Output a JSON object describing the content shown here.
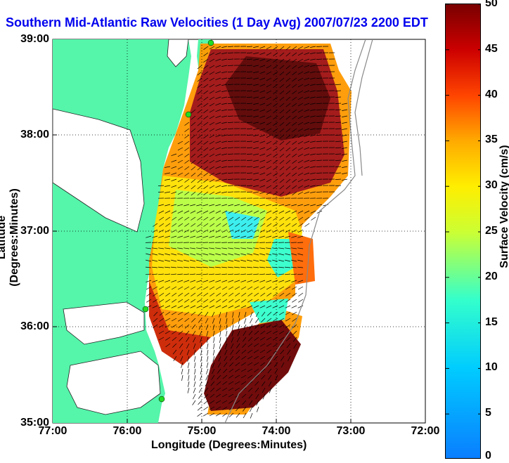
{
  "title": "Southern Mid-Atlantic Raw Velocities (1 Day Avg) 2007/07/23 2200 EDT",
  "x_axis": {
    "label": "Longitude (Degrees:Minutes)",
    "ticks": [
      "77:00",
      "76:00",
      "75:00",
      "74:00",
      "73:00",
      "72:00"
    ]
  },
  "y_axis": {
    "label": "Latitude (Degrees:Minutes)",
    "ticks": [
      "39:00",
      "38:00",
      "37:00",
      "36:00",
      "35:00"
    ]
  },
  "colorbar": {
    "label": "Surface Velocity (cm/s)",
    "ticks": [
      "50",
      "45",
      "40",
      "35",
      "30",
      "25",
      "20",
      "15",
      "10",
      "5",
      "0"
    ],
    "min": 0,
    "max": 50
  },
  "colors": {
    "land": "#55f5aa",
    "water": "#ffffff",
    "title": "#0000ee",
    "site_marker": "#22dd22"
  },
  "grid": true,
  "lon_range": [
    -77,
    -72
  ],
  "lat_range": [
    35,
    39
  ]
}
